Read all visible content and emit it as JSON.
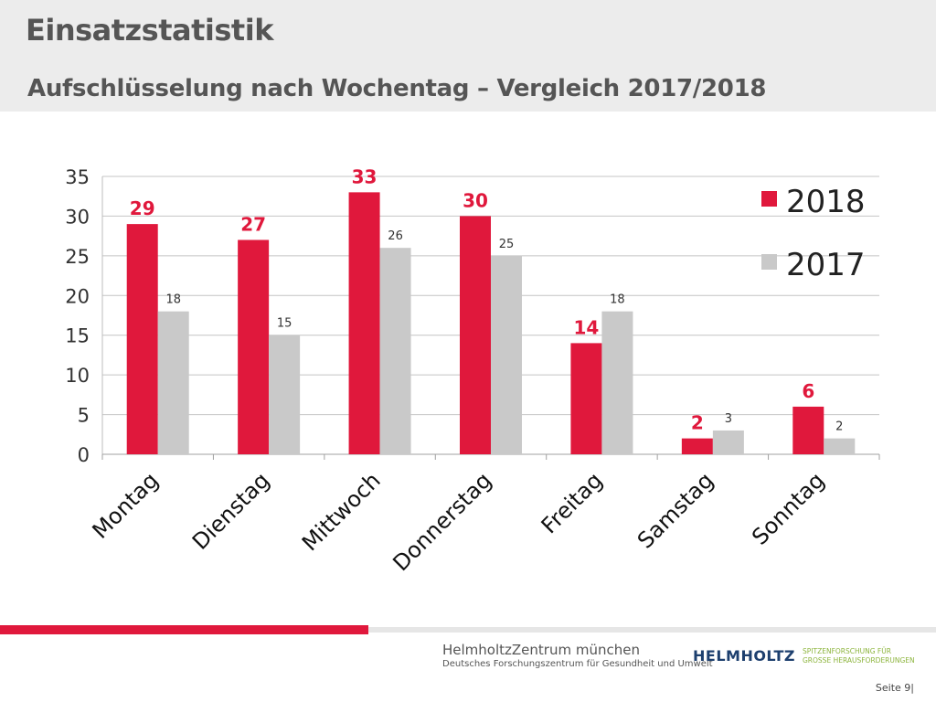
{
  "header": {
    "title": "Einsatzstatistik",
    "subtitle": "Aufschlüsselung nach Wochentag – Vergleich 2017/2018"
  },
  "chart_data": {
    "type": "bar",
    "categories": [
      "Montag",
      "Dienstag",
      "Mittwoch",
      "Donnerstag",
      "Freitag",
      "Samstag",
      "Sonntag"
    ],
    "series": [
      {
        "name": "2018",
        "values": [
          29,
          27,
          33,
          30,
          14,
          2,
          6
        ],
        "color": "#e0183c"
      },
      {
        "name": "2017",
        "values": [
          18,
          15,
          26,
          25,
          18,
          3,
          2
        ],
        "color": "#c9c9c9"
      }
    ],
    "ylim": [
      0,
      35
    ],
    "yticks": [
      0,
      5,
      10,
      15,
      20,
      25,
      30,
      35
    ],
    "title": "",
    "xlabel": "",
    "ylabel": "",
    "grid": true,
    "legend": "top-right"
  },
  "footer": {
    "org_name": "HelmholtzZentrum münchen",
    "org_sub": "Deutsches Forschungszentrum für Gesundheit und Umwelt",
    "helmholtz": "HELMHOLTZ",
    "claim_line1": "SPITZENFORSCHUNG FÜR",
    "claim_line2": "GROSSE HERAUSFORDERUNGEN",
    "page_label": "Seite 9|"
  },
  "colors": {
    "accent": "#e0183c",
    "secondary": "#c9c9c9",
    "header_bg": "#ececec"
  }
}
